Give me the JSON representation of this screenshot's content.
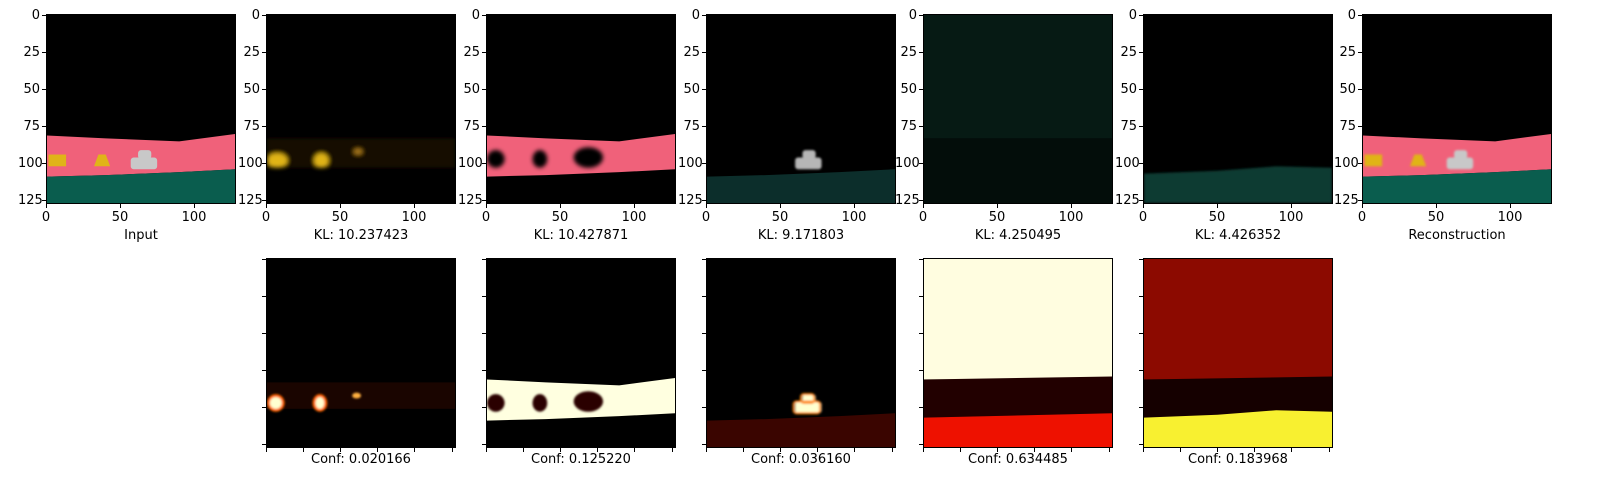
{
  "chart_data": {
    "type": "image-grid",
    "axis_ticks": [
      "0",
      "25",
      "50",
      "75",
      "100",
      "125"
    ],
    "x_ticks": [
      "0",
      "50",
      "100"
    ],
    "top_row": [
      {
        "caption": "Input",
        "kind": "input"
      },
      {
        "caption": "KL: 10.237423",
        "kind": "mask1"
      },
      {
        "caption": "KL: 10.427871",
        "kind": "mask2"
      },
      {
        "caption": "KL: 9.171803",
        "kind": "mask3"
      },
      {
        "caption": "KL: 4.250495",
        "kind": "mask4"
      },
      {
        "caption": "KL: 4.426352",
        "kind": "mask5"
      },
      {
        "caption": "Reconstruction",
        "kind": "recon"
      }
    ],
    "bottom_row": [
      {
        "caption": "Conf: 0.020166",
        "kind": "conf1"
      },
      {
        "caption": "Conf: 0.125220",
        "kind": "conf2"
      },
      {
        "caption": "Conf: 0.036160",
        "kind": "conf3"
      },
      {
        "caption": "Conf: 0.634485",
        "kind": "conf4"
      },
      {
        "caption": "Conf: 0.183968",
        "kind": "conf5"
      }
    ],
    "colors": {
      "pink": "#f0617a",
      "green": "#0a5d4e",
      "yellow": "#e0b418",
      "car": "#c8c8c8",
      "black": "#000000"
    }
  }
}
